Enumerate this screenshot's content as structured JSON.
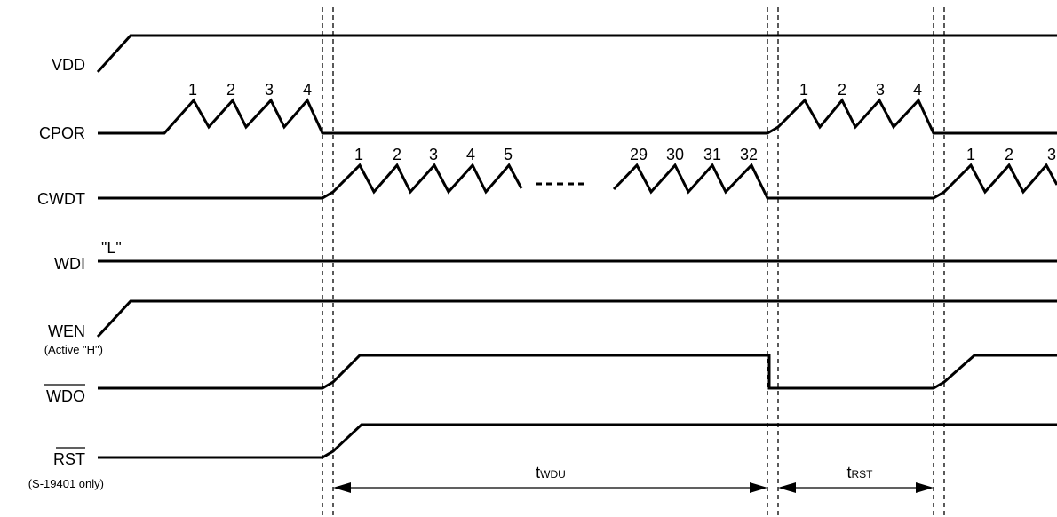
{
  "signals": {
    "vdd": {
      "label": "VDD"
    },
    "cpor": {
      "label": "CPOR"
    },
    "cwdt": {
      "label": "CWDT"
    },
    "wdi": {
      "label": "WDI",
      "level_note": "\"L\""
    },
    "wen": {
      "label": "WEN",
      "sublabel": "(Active \"H\")"
    },
    "wdo": {
      "label": "WDO"
    },
    "rst": {
      "label": "RST",
      "sublabel": "(S-19401 only)"
    }
  },
  "counts": {
    "cpor_first": [
      "1",
      "2",
      "3",
      "4"
    ],
    "cwdt_first": [
      "1",
      "2",
      "3",
      "4",
      "5"
    ],
    "cwdt_last": [
      "29",
      "30",
      "31",
      "32"
    ],
    "cpor_second": [
      "1",
      "2",
      "3",
      "4"
    ],
    "cwdt_second": [
      "1",
      "2",
      "3"
    ]
  },
  "intervals": {
    "twdu": {
      "symbol": "t",
      "subscript": "WDU"
    },
    "trst": {
      "symbol": "t",
      "subscript": "RST"
    }
  }
}
